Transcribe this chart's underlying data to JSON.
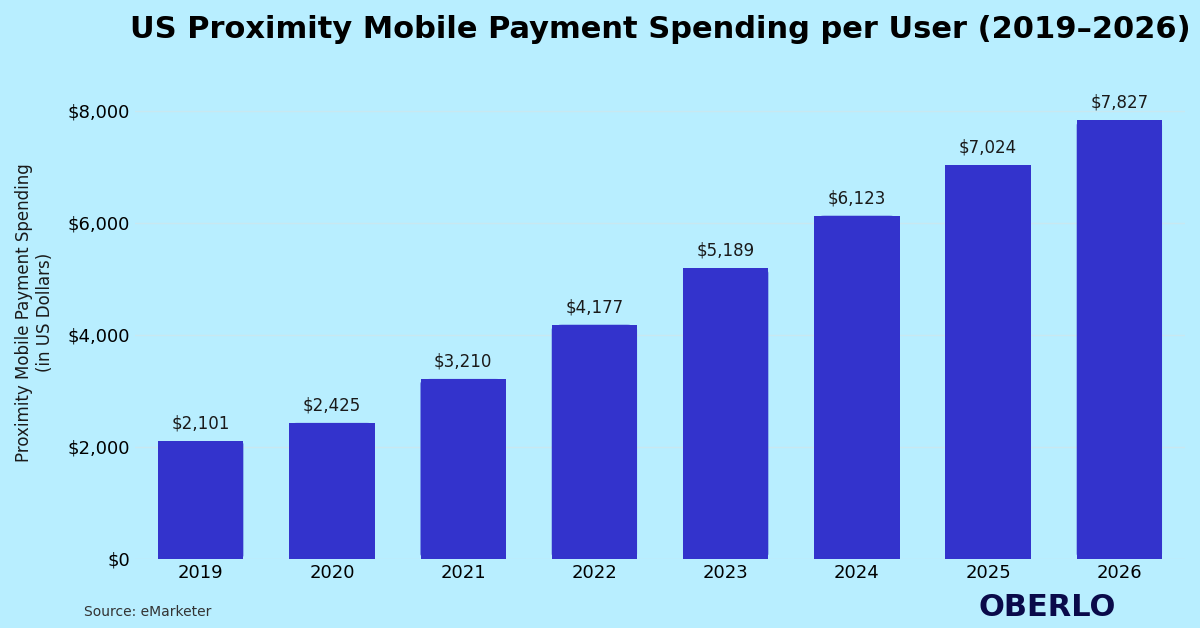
{
  "title": "US Proximity Mobile Payment Spending per User (2019–2026)",
  "years": [
    "2019",
    "2020",
    "2021",
    "2022",
    "2023",
    "2024",
    "2025",
    "2026"
  ],
  "values": [
    2101,
    2425,
    3210,
    4177,
    5189,
    6123,
    7024,
    7827
  ],
  "labels": [
    "$2,101",
    "$2,425",
    "$3,210",
    "$4,177",
    "$5,189",
    "$6,123",
    "$7,024",
    "$7,827"
  ],
  "bar_color": "#3333CC",
  "background_color": "#B8EEFF",
  "plot_bg_color": "#B8EEFF",
  "ylabel": "Proximity Mobile Payment Spending\n(in US Dollars)",
  "yticks": [
    0,
    2000,
    4000,
    6000,
    8000
  ],
  "ytick_labels": [
    "$0",
    "$2,000",
    "$4,000",
    "$6,000",
    "$8,000"
  ],
  "ylim": [
    0,
    8800
  ],
  "source_text": "Source: eMarketer",
  "brand_text": "OBERLO",
  "title_fontsize": 22,
  "label_fontsize": 12,
  "tick_fontsize": 13,
  "ylabel_fontsize": 12,
  "grid_color": "#c8e8f0",
  "bar_width": 0.65,
  "oberlo_color": "#0a0a4a"
}
